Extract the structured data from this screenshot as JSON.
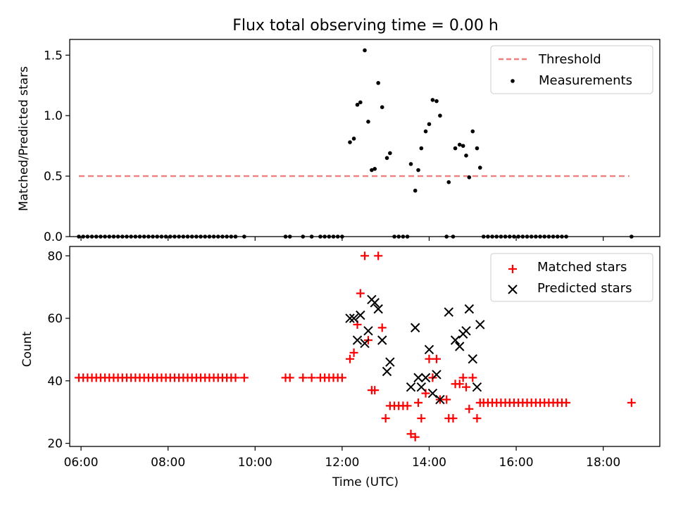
{
  "chart_data": [
    {
      "type": "scatter",
      "title": "Flux total observing time = 0.00 h",
      "xlabel": "",
      "ylabel": "Matched/Predicted stars",
      "xlim": [
        5.74,
        19.3
      ],
      "ylim": [
        0,
        1.63
      ],
      "y_ticks": [
        "0.0",
        "0.5",
        "1.0",
        "1.5"
      ],
      "x_ticks_visible": false,
      "legend_position": "upper right",
      "threshold": {
        "name": "Threshold",
        "value": 0.5,
        "x_range": [
          5.95,
          18.6
        ],
        "color": "#f08080",
        "style": "dashed"
      },
      "series": [
        {
          "name": "Measurements",
          "marker": "dot",
          "color": "#000000",
          "points": [
            [
              5.95,
              0
            ],
            [
              6.05,
              0
            ],
            [
              6.15,
              0
            ],
            [
              6.25,
              0
            ],
            [
              6.35,
              0
            ],
            [
              6.45,
              0
            ],
            [
              6.55,
              0
            ],
            [
              6.65,
              0
            ],
            [
              6.75,
              0
            ],
            [
              6.85,
              0
            ],
            [
              6.95,
              0
            ],
            [
              7.05,
              0
            ],
            [
              7.15,
              0
            ],
            [
              7.25,
              0
            ],
            [
              7.35,
              0
            ],
            [
              7.45,
              0
            ],
            [
              7.55,
              0
            ],
            [
              7.65,
              0
            ],
            [
              7.75,
              0
            ],
            [
              7.85,
              0
            ],
            [
              7.95,
              0
            ],
            [
              8.05,
              0
            ],
            [
              8.15,
              0
            ],
            [
              8.25,
              0
            ],
            [
              8.35,
              0
            ],
            [
              8.45,
              0
            ],
            [
              8.55,
              0
            ],
            [
              8.65,
              0
            ],
            [
              8.75,
              0
            ],
            [
              8.85,
              0
            ],
            [
              8.95,
              0
            ],
            [
              9.05,
              0
            ],
            [
              9.15,
              0
            ],
            [
              9.25,
              0
            ],
            [
              9.35,
              0
            ],
            [
              9.45,
              0
            ],
            [
              9.55,
              0
            ],
            [
              9.75,
              0
            ],
            [
              10.7,
              0
            ],
            [
              10.8,
              0
            ],
            [
              11.1,
              0
            ],
            [
              11.3,
              0
            ],
            [
              11.5,
              0
            ],
            [
              11.6,
              0
            ],
            [
              11.7,
              0
            ],
            [
              11.8,
              0
            ],
            [
              11.9,
              0
            ],
            [
              12.0,
              0
            ],
            [
              12.18,
              0.78
            ],
            [
              12.27,
              0.81
            ],
            [
              12.35,
              1.09
            ],
            [
              12.42,
              1.11
            ],
            [
              12.52,
              1.54
            ],
            [
              12.6,
              0.95
            ],
            [
              12.68,
              0.55
            ],
            [
              12.75,
              0.56
            ],
            [
              12.83,
              1.27
            ],
            [
              12.92,
              1.07
            ],
            [
              13.03,
              0.65
            ],
            [
              13.1,
              0.69
            ],
            [
              13.2,
              0
            ],
            [
              13.3,
              0
            ],
            [
              13.4,
              0
            ],
            [
              13.5,
              0
            ],
            [
              13.58,
              0.6
            ],
            [
              13.68,
              0.38
            ],
            [
              13.75,
              0.55
            ],
            [
              13.82,
              0.73
            ],
            [
              13.92,
              0.87
            ],
            [
              14.0,
              0.93
            ],
            [
              14.08,
              1.13
            ],
            [
              14.17,
              1.12
            ],
            [
              14.25,
              1.0
            ],
            [
              14.4,
              0
            ],
            [
              14.45,
              0.45
            ],
            [
              14.55,
              0
            ],
            [
              14.6,
              0.73
            ],
            [
              14.7,
              0.76
            ],
            [
              14.78,
              0.75
            ],
            [
              14.85,
              0.67
            ],
            [
              14.92,
              0.49
            ],
            [
              15.0,
              0.87
            ],
            [
              15.1,
              0.73
            ],
            [
              15.17,
              0.57
            ],
            [
              15.25,
              0
            ],
            [
              15.35,
              0
            ],
            [
              15.45,
              0
            ],
            [
              15.55,
              0
            ],
            [
              15.65,
              0
            ],
            [
              15.75,
              0
            ],
            [
              15.85,
              0
            ],
            [
              15.95,
              0
            ],
            [
              16.05,
              0
            ],
            [
              16.15,
              0
            ],
            [
              16.25,
              0
            ],
            [
              16.35,
              0
            ],
            [
              16.45,
              0
            ],
            [
              16.55,
              0
            ],
            [
              16.65,
              0
            ],
            [
              16.75,
              0
            ],
            [
              16.85,
              0
            ],
            [
              16.95,
              0
            ],
            [
              17.05,
              0
            ],
            [
              17.15,
              0
            ],
            [
              18.65,
              0
            ]
          ]
        }
      ]
    },
    {
      "type": "scatter",
      "title": "",
      "xlabel": "Time (UTC)",
      "ylabel": "Count",
      "xlim": [
        5.74,
        19.3
      ],
      "ylim": [
        19,
        83
      ],
      "x_ticks": [
        "06:00",
        "08:00",
        "10:00",
        "12:00",
        "14:00",
        "16:00",
        "18:00"
      ],
      "x_tick_values": [
        6,
        8,
        10,
        12,
        14,
        16,
        18
      ],
      "y_ticks": [
        "20",
        "40",
        "60",
        "80"
      ],
      "legend_position": "upper right",
      "series": [
        {
          "name": "Matched stars",
          "marker": "plus",
          "color": "#ff0000",
          "points": [
            [
              5.95,
              41
            ],
            [
              6.05,
              41
            ],
            [
              6.15,
              41
            ],
            [
              6.25,
              41
            ],
            [
              6.35,
              41
            ],
            [
              6.45,
              41
            ],
            [
              6.55,
              41
            ],
            [
              6.65,
              41
            ],
            [
              6.75,
              41
            ],
            [
              6.85,
              41
            ],
            [
              6.95,
              41
            ],
            [
              7.05,
              41
            ],
            [
              7.15,
              41
            ],
            [
              7.25,
              41
            ],
            [
              7.35,
              41
            ],
            [
              7.45,
              41
            ],
            [
              7.55,
              41
            ],
            [
              7.65,
              41
            ],
            [
              7.75,
              41
            ],
            [
              7.85,
              41
            ],
            [
              7.95,
              41
            ],
            [
              8.05,
              41
            ],
            [
              8.15,
              41
            ],
            [
              8.25,
              41
            ],
            [
              8.35,
              41
            ],
            [
              8.45,
              41
            ],
            [
              8.55,
              41
            ],
            [
              8.65,
              41
            ],
            [
              8.75,
              41
            ],
            [
              8.85,
              41
            ],
            [
              8.95,
              41
            ],
            [
              9.05,
              41
            ],
            [
              9.15,
              41
            ],
            [
              9.25,
              41
            ],
            [
              9.35,
              41
            ],
            [
              9.45,
              41
            ],
            [
              9.55,
              41
            ],
            [
              9.75,
              41
            ],
            [
              10.7,
              41
            ],
            [
              10.8,
              41
            ],
            [
              11.1,
              41
            ],
            [
              11.3,
              41
            ],
            [
              11.5,
              41
            ],
            [
              11.6,
              41
            ],
            [
              11.7,
              41
            ],
            [
              11.8,
              41
            ],
            [
              11.9,
              41
            ],
            [
              12.0,
              41
            ],
            [
              12.18,
              47
            ],
            [
              12.27,
              49
            ],
            [
              12.35,
              58
            ],
            [
              12.42,
              68
            ],
            [
              12.52,
              80
            ],
            [
              12.6,
              53
            ],
            [
              12.68,
              37
            ],
            [
              12.75,
              37
            ],
            [
              12.83,
              80
            ],
            [
              12.92,
              57
            ],
            [
              13.0,
              28
            ],
            [
              13.1,
              32
            ],
            [
              13.2,
              32
            ],
            [
              13.3,
              32
            ],
            [
              13.4,
              32
            ],
            [
              13.5,
              32
            ],
            [
              13.58,
              23
            ],
            [
              13.68,
              22
            ],
            [
              13.75,
              33
            ],
            [
              13.82,
              28
            ],
            [
              13.92,
              36
            ],
            [
              14.0,
              47
            ],
            [
              14.08,
              41
            ],
            [
              14.17,
              47
            ],
            [
              14.25,
              34
            ],
            [
              14.4,
              34
            ],
            [
              14.45,
              28
            ],
            [
              14.55,
              28
            ],
            [
              14.6,
              39
            ],
            [
              14.7,
              39
            ],
            [
              14.78,
              41
            ],
            [
              14.85,
              38
            ],
            [
              14.92,
              31
            ],
            [
              15.0,
              41
            ],
            [
              15.1,
              28
            ],
            [
              15.17,
              33
            ],
            [
              15.25,
              33
            ],
            [
              15.35,
              33
            ],
            [
              15.45,
              33
            ],
            [
              15.55,
              33
            ],
            [
              15.65,
              33
            ],
            [
              15.75,
              33
            ],
            [
              15.85,
              33
            ],
            [
              15.95,
              33
            ],
            [
              16.05,
              33
            ],
            [
              16.15,
              33
            ],
            [
              16.25,
              33
            ],
            [
              16.35,
              33
            ],
            [
              16.45,
              33
            ],
            [
              16.55,
              33
            ],
            [
              16.65,
              33
            ],
            [
              16.75,
              33
            ],
            [
              16.85,
              33
            ],
            [
              16.95,
              33
            ],
            [
              17.05,
              33
            ],
            [
              17.15,
              33
            ],
            [
              18.65,
              33
            ]
          ]
        },
        {
          "name": "Predicted stars",
          "marker": "x",
          "color": "#000000",
          "points": [
            [
              12.18,
              60
            ],
            [
              12.27,
              60
            ],
            [
              12.35,
              53
            ],
            [
              12.42,
              61
            ],
            [
              12.52,
              52
            ],
            [
              12.6,
              56
            ],
            [
              12.68,
              66
            ],
            [
              12.75,
              65
            ],
            [
              12.83,
              63
            ],
            [
              12.92,
              53
            ],
            [
              13.03,
              43
            ],
            [
              13.1,
              46
            ],
            [
              13.58,
              38
            ],
            [
              13.68,
              57
            ],
            [
              13.75,
              41
            ],
            [
              13.82,
              38
            ],
            [
              13.92,
              41
            ],
            [
              14.0,
              50
            ],
            [
              14.08,
              36
            ],
            [
              14.17,
              42
            ],
            [
              14.25,
              34
            ],
            [
              14.45,
              62
            ],
            [
              14.6,
              53
            ],
            [
              14.7,
              51
            ],
            [
              14.78,
              55
            ],
            [
              14.85,
              56
            ],
            [
              14.92,
              63
            ],
            [
              15.0,
              47
            ],
            [
              15.1,
              38
            ],
            [
              15.17,
              58
            ]
          ]
        }
      ]
    }
  ]
}
